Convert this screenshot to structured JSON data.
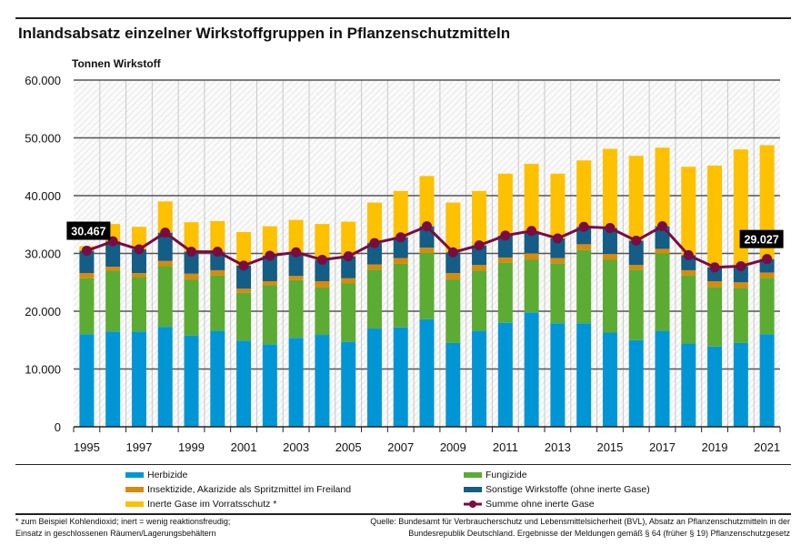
{
  "chart_data": {
    "type": "bar",
    "stacked": true,
    "title": "Inlandsabsatz einzelner Wirkstoffgruppen in Pflanzenschutzmitteln",
    "ylabel": "Tonnen Wirkstoff",
    "ylim": [
      0,
      60000
    ],
    "yticks": [
      "0",
      "10.000",
      "20.000",
      "30.000",
      "40.000",
      "50.000",
      "60.000"
    ],
    "grid": true,
    "legend_placement": "bottom",
    "categories": [
      "1995",
      "1996",
      "1997",
      "1998",
      "1999",
      "2000",
      "2001",
      "2002",
      "2003",
      "2004",
      "2005",
      "2006",
      "2007",
      "2008",
      "2009",
      "2010",
      "2011",
      "2012",
      "2013",
      "2014",
      "2015",
      "2016",
      "2017",
      "2018",
      "2019",
      "2020",
      "2021"
    ],
    "xtick_labels": [
      "1995",
      "1997",
      "1999",
      "2001",
      "2003",
      "2005",
      "2007",
      "2009",
      "2011",
      "2013",
      "2015",
      "2017",
      "2019",
      "2021"
    ],
    "series": [
      {
        "name": "Herbizide",
        "color": "#0096d6",
        "values": [
          16000,
          16500,
          16500,
          17300,
          15800,
          16600,
          14900,
          14300,
          15400,
          15900,
          14700,
          17000,
          17200,
          18600,
          14500,
          16600,
          18000,
          19800,
          17900,
          17900,
          16300,
          15000,
          16600,
          14400,
          13900,
          14500,
          16000
        ]
      },
      {
        "name": "Fungizide",
        "color": "#5cab32",
        "values": [
          9700,
          10500,
          9400,
          10500,
          9700,
          9600,
          8300,
          10200,
          10000,
          8200,
          10100,
          10200,
          11000,
          11500,
          11000,
          10400,
          10400,
          9100,
          10400,
          12700,
          12600,
          12200,
          13400,
          11800,
          10300,
          9500,
          9800
        ]
      },
      {
        "name": "Insektizide, Akarizide als Spritzmittel im Freiland",
        "color": "#d78a0b",
        "values": [
          900,
          700,
          700,
          900,
          1000,
          900,
          700,
          700,
          700,
          1100,
          900,
          900,
          1000,
          900,
          1100,
          1000,
          900,
          1100,
          900,
          1000,
          1000,
          800,
          800,
          900,
          1000,
          1000,
          900
        ]
      },
      {
        "name": "Sonstige  Wirkstoffe (ohne inerte Gase)",
        "color": "#135d86",
        "values": [
          3867,
          4400,
          4100,
          4900,
          3800,
          3200,
          4000,
          4400,
          4100,
          3700,
          3800,
          3700,
          3600,
          3700,
          3600,
          3400,
          3800,
          3900,
          3400,
          3000,
          4500,
          4200,
          3900,
          2600,
          2400,
          2800,
          2327
        ]
      },
      {
        "name": "Inerte Gase im Vorratsschutz *",
        "color": "#fdc100",
        "values": [
          800,
          3000,
          3900,
          5400,
          5100,
          5300,
          5800,
          5100,
          5600,
          6200,
          6000,
          7000,
          8000,
          8700,
          8600,
          9400,
          10700,
          11600,
          11200,
          11500,
          13700,
          14700,
          13600,
          15300,
          17600,
          20200,
          19700
        ]
      }
    ],
    "line_series": {
      "name": "Summe ohne inerte Gase",
      "color": "#7b0b40",
      "values": [
        30467,
        32100,
        30700,
        33600,
        30300,
        30300,
        27900,
        29600,
        30200,
        28900,
        29500,
        31800,
        32800,
        34700,
        30200,
        31400,
        33100,
        33900,
        32600,
        34600,
        34400,
        32200,
        34700,
        29700,
        27600,
        27800,
        29027
      ]
    },
    "annotations": [
      {
        "year": "1995",
        "text": "30.467"
      },
      {
        "year": "2021",
        "text": "29.027"
      }
    ]
  },
  "footnote": [
    "* zum Beispiel Kohlendioxid; inert = wenig reaktionsfreudig;",
    "Einsatz in geschlossenen Räumen/Lagerungsbehältern"
  ],
  "source": [
    "Quelle: Bundesamt für Verbraucherschutz und Lebensmittelsicherheit (BVL), Absatz an Pflanzenschutzmitteln in der",
    "Bundesrepublik Deutschland. Ergebnisse der Meldungen gemäß § 64 (früher § 19) Pflanzenschutzgesetz"
  ]
}
